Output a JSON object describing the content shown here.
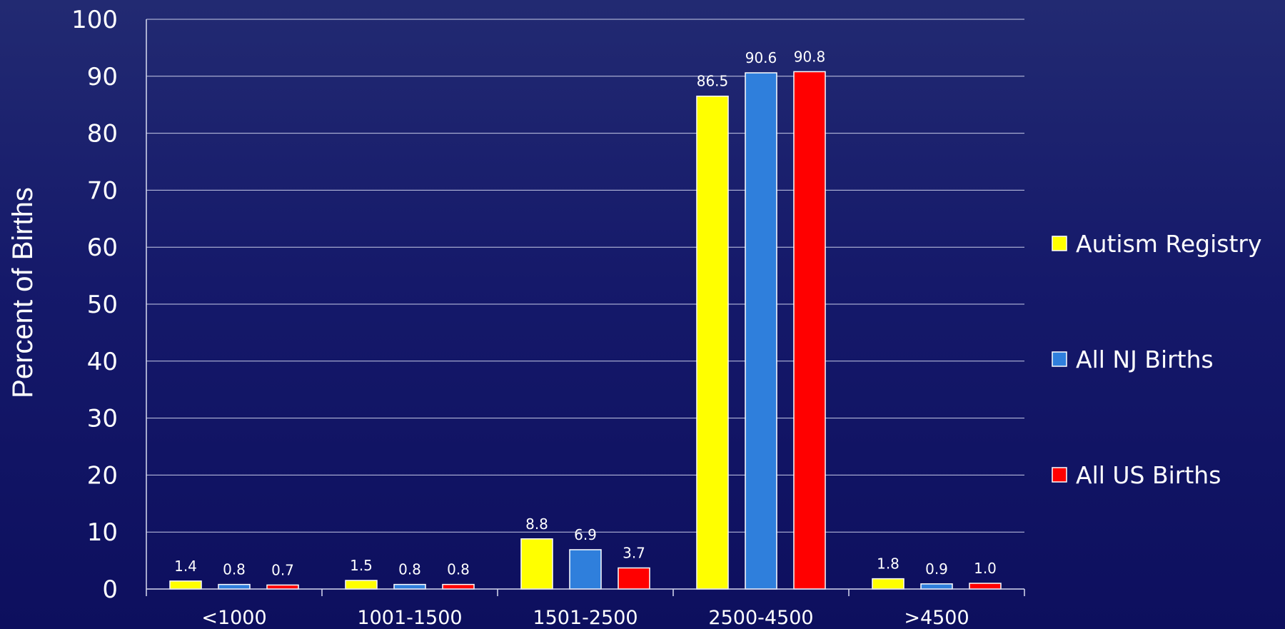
{
  "chart_data": {
    "type": "bar",
    "title": "",
    "xlabel": "",
    "ylabel": "Percent of Births",
    "ylim": [
      0,
      100
    ],
    "yticks": [
      0,
      10,
      20,
      30,
      40,
      50,
      60,
      70,
      80,
      90,
      100
    ],
    "grid": true,
    "legend_position": "right",
    "categories": [
      "<1000",
      "1001-1500",
      "1501-2500",
      "2500-4500",
      ">4500"
    ],
    "series": [
      {
        "name": "Autism Registry",
        "color": "#ffff00",
        "values": [
          1.4,
          1.5,
          8.8,
          86.5,
          1.8
        ],
        "labels": [
          "1.4",
          "1.5",
          "8.8",
          "86.5",
          "1.8"
        ]
      },
      {
        "name": "All NJ Births",
        "color": "#2f7fdc",
        "values": [
          0.8,
          0.8,
          6.9,
          90.6,
          0.9
        ],
        "labels": [
          "0.8",
          "0.8",
          "6.9",
          "90.6",
          "0.9"
        ]
      },
      {
        "name": "All US Births",
        "color": "#ff0000",
        "values": [
          0.7,
          0.8,
          3.7,
          90.8,
          1.0
        ],
        "labels": [
          "0.7",
          "0.8",
          "3.7",
          "90.8",
          "1.0"
        ]
      }
    ]
  }
}
